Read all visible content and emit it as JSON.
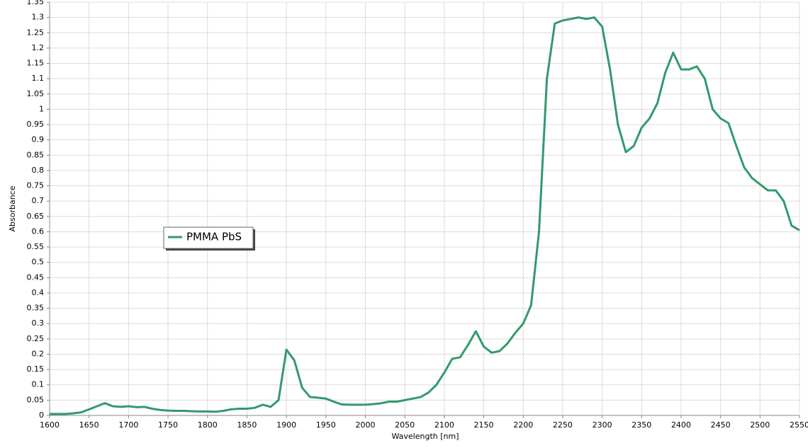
{
  "chart_data": {
    "type": "line",
    "x_label": "Wavelength [nm]",
    "y_label": "Absorbance",
    "x": [
      1600,
      1610,
      1620,
      1630,
      1640,
      1650,
      1660,
      1670,
      1680,
      1690,
      1700,
      1710,
      1720,
      1730,
      1740,
      1750,
      1760,
      1770,
      1780,
      1790,
      1800,
      1810,
      1820,
      1830,
      1840,
      1850,
      1860,
      1870,
      1880,
      1890,
      1900,
      1910,
      1920,
      1930,
      1940,
      1950,
      1960,
      1970,
      1980,
      1990,
      2000,
      2010,
      2020,
      2030,
      2040,
      2050,
      2060,
      2070,
      2080,
      2090,
      2100,
      2110,
      2120,
      2130,
      2140,
      2150,
      2160,
      2170,
      2180,
      2190,
      2200,
      2210,
      2220,
      2230,
      2240,
      2250,
      2260,
      2270,
      2280,
      2290,
      2300,
      2310,
      2320,
      2330,
      2340,
      2350,
      2360,
      2370,
      2380,
      2390,
      2400,
      2410,
      2420,
      2430,
      2440,
      2450,
      2460,
      2470,
      2480,
      2490,
      2500,
      2510,
      2520,
      2530,
      2540,
      2550
    ],
    "series": [
      {
        "name": "PMMA PbS",
        "color": "#339a6c",
        "values": [
          0.005,
          0.005,
          0.005,
          0.007,
          0.01,
          0.02,
          0.03,
          0.04,
          0.03,
          0.028,
          0.03,
          0.027,
          0.028,
          0.022,
          0.018,
          0.016,
          0.015,
          0.015,
          0.014,
          0.013,
          0.013,
          0.012,
          0.015,
          0.02,
          0.022,
          0.022,
          0.025,
          0.035,
          0.028,
          0.05,
          0.215,
          0.18,
          0.09,
          0.06,
          0.058,
          0.055,
          0.045,
          0.036,
          0.035,
          0.035,
          0.035,
          0.037,
          0.04,
          0.045,
          0.045,
          0.05,
          0.055,
          0.06,
          0.075,
          0.1,
          0.14,
          0.185,
          0.19,
          0.23,
          0.275,
          0.225,
          0.205,
          0.21,
          0.235,
          0.27,
          0.3,
          0.36,
          0.6,
          1.1,
          1.28,
          1.29,
          1.295,
          1.3,
          1.295,
          1.3,
          1.27,
          1.13,
          0.95,
          0.86,
          0.88,
          0.94,
          0.97,
          1.02,
          1.12,
          1.185,
          1.13,
          1.13,
          1.14,
          1.1,
          1.0,
          0.97,
          0.955,
          0.88,
          0.81,
          0.775,
          0.755,
          0.735,
          0.735,
          0.7,
          0.62,
          0.605
        ]
      }
    ],
    "xlim": [
      1600,
      2550
    ],
    "xticks": [
      1600,
      1650,
      1700,
      1750,
      1800,
      1850,
      1900,
      1950,
      2000,
      2050,
      2100,
      2150,
      2200,
      2250,
      2300,
      2350,
      2400,
      2450,
      2500,
      2550
    ],
    "ylim": [
      0,
      1.35
    ],
    "yticks": [
      0,
      0.05,
      0.1,
      0.15,
      0.2,
      0.25,
      0.3,
      0.35,
      0.4,
      0.45,
      0.5,
      0.55,
      0.6,
      0.65,
      0.7,
      0.75,
      0.8,
      0.85,
      0.9,
      0.95,
      1,
      1.05,
      1.1,
      1.15,
      1.2,
      1.25,
      1.3,
      1.35
    ],
    "grid": true,
    "legend": "middle-left"
  }
}
